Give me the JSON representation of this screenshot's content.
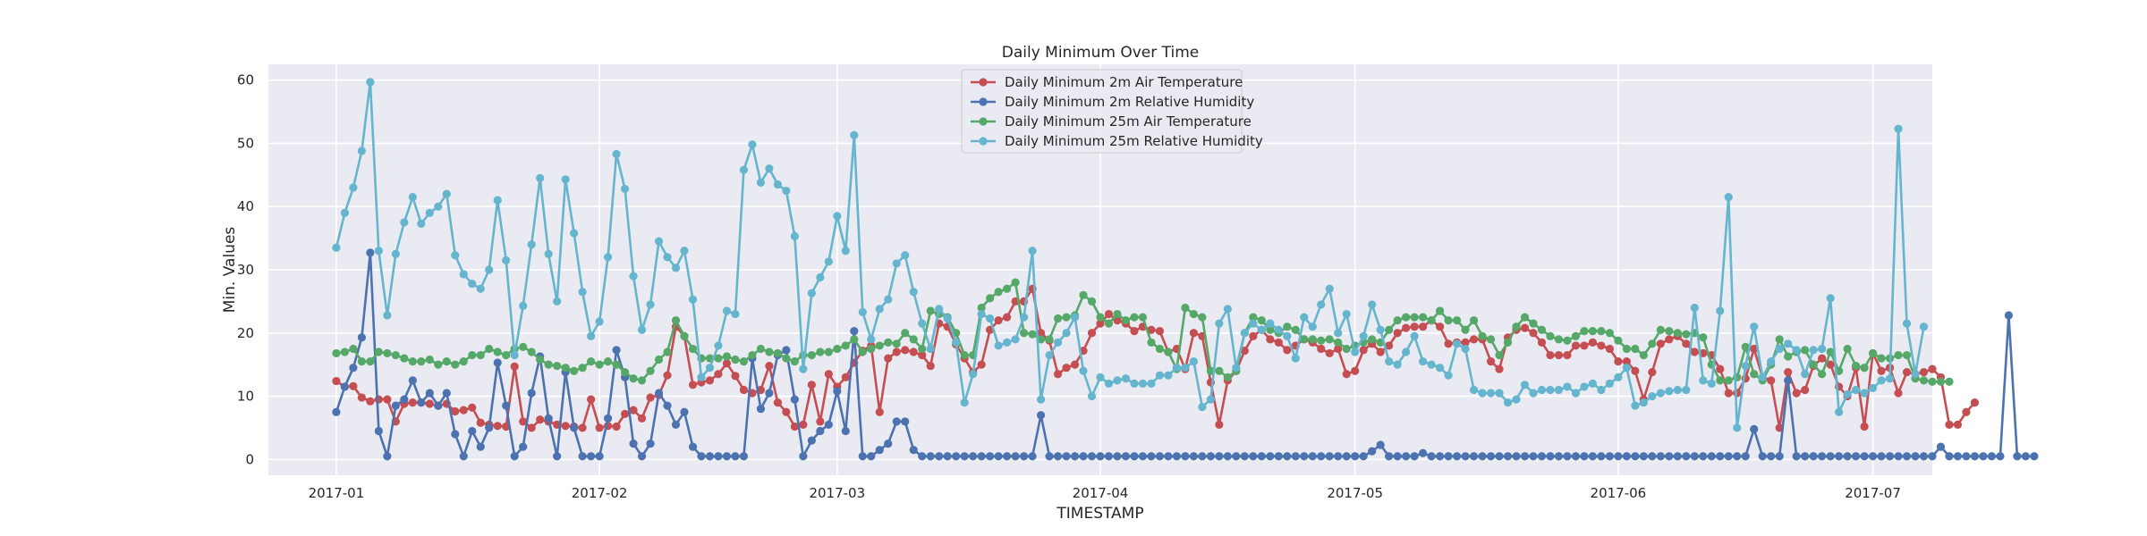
{
  "chart_data": {
    "type": "line",
    "title": "Daily Minimum Over Time",
    "xlabel": "TIMESTAMP",
    "ylabel": "Min. Values",
    "x_start": "2017-01-01",
    "x_end": "2017-06-30",
    "xlim": [
      "2016-12-24",
      "2017-07-08"
    ],
    "ylim": [
      -2.5,
      62.5
    ],
    "xticks": [
      {
        "date": "2017-01-01",
        "label": "2017-01"
      },
      {
        "date": "2017-02-01",
        "label": "2017-02"
      },
      {
        "date": "2017-03-01",
        "label": "2017-03"
      },
      {
        "date": "2017-04-01",
        "label": "2017-04"
      },
      {
        "date": "2017-05-01",
        "label": "2017-05"
      },
      {
        "date": "2017-06-01",
        "label": "2017-06"
      },
      {
        "date": "2017-07-01",
        "label": "2017-07"
      }
    ],
    "yticks": [
      0,
      10,
      20,
      30,
      40,
      50,
      60
    ],
    "grid": true,
    "legend_position": "top-center",
    "series": [
      {
        "name": "Daily Minimum 2m Air Temperature",
        "color": "#c44e52",
        "values": [
          12.4,
          11.5,
          11.6,
          9.8,
          9.2,
          9.5,
          9.5,
          6.0,
          8.8,
          9.0,
          9.0,
          8.8,
          8.5,
          8.8,
          7.6,
          7.8,
          8.2,
          5.8,
          5.5,
          5.3,
          5.2,
          14.7,
          6.0,
          5.0,
          6.3,
          6.0,
          5.5,
          5.3,
          5.2,
          5.0,
          9.5,
          5.0,
          5.3,
          5.2,
          7.2,
          7.8,
          6.5,
          9.8,
          10.2,
          13.3,
          21.0,
          19.5,
          11.8,
          12.2,
          12.5,
          13.5,
          15.2,
          13.2,
          11.0,
          10.5,
          11.0,
          14.8,
          9.0,
          7.5,
          5.2,
          5.5,
          11.8,
          6.0,
          13.5,
          11.5,
          13.0,
          15.3,
          17.2,
          18.0,
          7.5,
          16.0,
          17.0,
          17.3,
          17.0,
          16.5,
          14.8,
          21.5,
          21.0,
          18.2,
          16.0,
          13.8,
          15.0,
          20.5,
          22.0,
          22.5,
          25.0,
          25.0,
          27.0,
          20.0,
          18.8,
          13.5,
          14.5,
          15.0,
          17.2,
          20.0,
          21.5,
          23.0,
          22.0,
          21.5,
          20.3,
          21.0,
          20.5,
          20.3,
          17.0,
          17.5,
          14.3,
          20.0,
          19.5,
          12.2,
          5.5,
          12.5,
          14.0,
          17.2,
          19.5,
          20.5,
          19.0,
          18.5,
          17.3,
          18.0,
          19.0,
          18.5,
          17.5,
          16.8,
          17.5,
          13.5,
          14.0,
          17.3,
          18.3,
          17.0,
          18.0,
          20.0,
          20.8,
          21.0,
          21.0,
          22.0,
          21.0,
          18.3,
          18.5,
          18.5,
          19.0,
          19.0,
          15.5,
          14.3,
          19.3,
          20.5,
          20.8,
          20.0,
          18.5,
          16.5,
          16.5,
          16.5,
          18.0,
          18.0,
          18.5,
          18.0,
          17.5,
          15.5,
          15.5,
          14.0,
          9.5,
          13.8,
          18.3,
          19.0,
          19.5,
          18.3,
          17.0,
          16.8,
          16.5,
          14.3,
          10.5,
          10.5,
          12.8,
          17.5,
          13.0,
          12.5,
          5.0,
          13.8,
          10.5,
          11.0,
          14.8,
          16.0,
          15.0,
          11.5,
          10.0,
          14.5,
          5.2,
          16.8,
          14.0,
          14.5,
          10.5,
          13.8,
          13.5,
          13.8,
          14.3,
          13.0,
          5.5,
          5.5,
          7.5,
          9.0
        ]
      },
      {
        "name": "Daily Minimum 2m Relative Humidity",
        "color": "#4c72b0",
        "values": [
          7.5,
          11.5,
          14.5,
          19.3,
          32.7,
          4.5,
          0.5,
          8.5,
          9.5,
          12.5,
          9.0,
          10.5,
          8.5,
          10.5,
          4.0,
          0.5,
          4.5,
          2.0,
          5.0,
          15.3,
          8.5,
          0.5,
          2.0,
          10.5,
          16.3,
          6.5,
          0.5,
          13.8,
          5.0,
          0.5,
          0.5,
          0.5,
          6.5,
          17.3,
          13.0,
          2.5,
          0.5,
          2.5,
          10.5,
          8.5,
          5.5,
          7.5,
          2.0,
          0.5,
          0.5,
          0.5,
          0.5,
          0.5,
          0.5,
          16.0,
          8.0,
          10.5,
          16.5,
          17.3,
          9.5,
          0.5,
          3.0,
          4.5,
          5.5,
          10.8,
          4.5,
          20.3,
          0.5,
          0.5,
          1.5,
          2.5,
          6.0,
          6.0,
          1.5,
          0.5,
          0.5,
          0.5,
          0.5,
          0.5,
          0.5,
          0.5,
          0.5,
          0.5,
          0.5,
          0.5,
          0.5,
          0.5,
          0.5,
          7.0,
          0.5,
          0.5,
          0.5,
          0.5,
          0.5,
          0.5,
          0.5,
          0.5,
          0.5,
          0.5,
          0.5,
          0.5,
          0.5,
          0.5,
          0.5,
          0.5,
          0.5,
          0.5,
          0.5,
          0.5,
          0.5,
          0.5,
          0.5,
          0.5,
          0.5,
          0.5,
          0.5,
          0.5,
          0.5,
          0.5,
          0.5,
          0.5,
          0.5,
          0.5,
          0.5,
          0.5,
          0.5,
          0.5,
          1.3,
          2.3,
          0.5,
          0.5,
          0.5,
          0.5,
          1.0,
          0.5,
          0.5,
          0.5,
          0.5,
          0.5,
          0.5,
          0.5,
          0.5,
          0.5,
          0.5,
          0.5,
          0.5,
          0.5,
          0.5,
          0.5,
          0.5,
          0.5,
          0.5,
          0.5,
          0.5,
          0.5,
          0.5,
          0.5,
          0.5,
          0.5,
          0.5,
          0.5,
          0.5,
          0.5,
          0.5,
          0.5,
          0.5,
          0.5,
          0.5,
          0.5,
          0.5,
          0.5,
          0.5,
          4.8,
          0.5,
          0.5,
          0.5,
          12.5,
          0.5,
          0.5,
          0.5,
          0.5,
          0.5,
          0.5,
          0.5,
          0.5,
          0.5,
          0.5,
          0.5,
          0.5,
          0.5,
          0.5,
          0.5,
          0.5,
          0.5,
          2.0,
          0.5,
          0.5,
          0.5,
          0.5,
          0.5,
          0.5,
          0.5,
          22.8,
          0.5,
          0.5,
          0.5
        ]
      },
      {
        "name": "Daily Minimum 25m Air Temperature",
        "color": "#55a868",
        "values": [
          16.8,
          17.0,
          17.5,
          15.5,
          15.5,
          17.0,
          16.8,
          16.5,
          16.0,
          15.5,
          15.5,
          15.8,
          15.0,
          15.5,
          15.0,
          15.5,
          16.5,
          16.5,
          17.5,
          17.0,
          16.5,
          17.5,
          17.8,
          17.0,
          15.8,
          15.0,
          14.8,
          14.5,
          14.0,
          14.5,
          15.5,
          15.0,
          15.5,
          15.0,
          13.8,
          12.8,
          12.5,
          14.0,
          15.8,
          17.0,
          22.0,
          19.5,
          17.5,
          16.0,
          16.0,
          16.0,
          16.3,
          15.8,
          15.5,
          16.5,
          17.5,
          17.0,
          16.8,
          16.0,
          15.5,
          16.5,
          16.5,
          17.0,
          17.0,
          17.5,
          18.0,
          19.0,
          17.0,
          17.5,
          18.0,
          18.5,
          18.3,
          20.0,
          19.0,
          17.5,
          23.5,
          23.0,
          22.5,
          20.0,
          16.5,
          16.5,
          24.0,
          25.5,
          26.5,
          27.0,
          28.0,
          20.0,
          19.8,
          19.0,
          19.0,
          22.3,
          22.5,
          22.8,
          26.0,
          25.0,
          22.5,
          21.5,
          23.0,
          22.0,
          22.5,
          22.5,
          18.5,
          17.5,
          17.0,
          14.3,
          24.0,
          23.0,
          22.5,
          14.0,
          14.0,
          13.0,
          14.0,
          20.0,
          22.5,
          22.0,
          20.5,
          20.0,
          21.0,
          20.5,
          19.0,
          19.0,
          18.8,
          19.0,
          18.5,
          17.5,
          18.0,
          18.5,
          19.0,
          18.5,
          20.5,
          22.0,
          22.5,
          22.5,
          22.5,
          22.0,
          23.5,
          22.0,
          22.0,
          20.5,
          22.0,
          19.5,
          19.0,
          16.5,
          18.5,
          21.0,
          22.5,
          21.5,
          20.5,
          19.5,
          19.0,
          18.8,
          19.5,
          20.3,
          20.3,
          20.3,
          20.0,
          18.8,
          17.5,
          17.5,
          16.5,
          18.3,
          20.5,
          20.3,
          20.0,
          19.8,
          20.0,
          19.3,
          15.0,
          12.5,
          12.5,
          13.0,
          17.8,
          13.5,
          12.5,
          15.0,
          19.0,
          16.3,
          17.0,
          17.3,
          15.0,
          13.5,
          17.0,
          14.0,
          17.5,
          14.8,
          14.5,
          16.8,
          16.0,
          16.0,
          16.5,
          16.5,
          12.8,
          12.5,
          12.3,
          12.3,
          12.3
        ]
      },
      {
        "name": "Daily Minimum 25m Relative Humidity",
        "color": "#64b5cd",
        "values": [
          33.5,
          39.0,
          43.0,
          48.8,
          59.7,
          33.0,
          22.8,
          32.5,
          37.5,
          41.5,
          37.3,
          39.0,
          40.0,
          42.0,
          32.3,
          29.3,
          27.8,
          27.0,
          30.0,
          41.0,
          31.5,
          16.5,
          24.3,
          34.0,
          44.5,
          32.5,
          25.0,
          44.3,
          35.8,
          26.5,
          19.5,
          21.8,
          32.0,
          48.3,
          42.8,
          29.0,
          20.5,
          24.5,
          34.5,
          32.0,
          30.3,
          33.0,
          25.3,
          13.0,
          14.5,
          18.0,
          23.5,
          23.0,
          45.8,
          49.8,
          43.8,
          46.0,
          43.5,
          42.5,
          35.3,
          14.3,
          26.3,
          28.8,
          31.3,
          38.5,
          33.0,
          51.3,
          23.3,
          19.0,
          23.8,
          25.3,
          31.0,
          32.3,
          26.5,
          21.5,
          17.5,
          23.8,
          22.3,
          18.5,
          9.0,
          13.5,
          23.0,
          22.3,
          18.0,
          18.5,
          19.0,
          22.5,
          33.0,
          9.5,
          16.5,
          18.5,
          20.0,
          22.5,
          14.0,
          10.0,
          13.0,
          12.0,
          12.5,
          12.8,
          12.0,
          12.0,
          12.0,
          13.3,
          13.3,
          14.5,
          14.5,
          15.5,
          8.3,
          9.5,
          21.5,
          23.8,
          14.5,
          20.0,
          21.5,
          20.5,
          21.5,
          20.5,
          19.5,
          16.0,
          22.5,
          21.0,
          24.5,
          27.0,
          20.0,
          23.0,
          17.0,
          19.5,
          24.5,
          20.5,
          15.5,
          15.0,
          17.0,
          19.5,
          15.5,
          15.0,
          14.5,
          13.3,
          18.3,
          17.5,
          11.0,
          10.5,
          10.5,
          10.5,
          9.0,
          9.5,
          11.8,
          10.5,
          11.0,
          11.0,
          11.0,
          11.5,
          10.5,
          11.5,
          12.0,
          11.0,
          12.0,
          13.0,
          14.5,
          8.5,
          9.0,
          10.0,
          10.5,
          10.8,
          11.0,
          11.0,
          24.0,
          12.5,
          12.0,
          23.5,
          41.5,
          5.0,
          14.8,
          21.0,
          13.0,
          15.5,
          17.5,
          18.3,
          17.3,
          13.5,
          17.3,
          17.5,
          25.5,
          7.5,
          10.3,
          11.0,
          10.5,
          11.3,
          12.5,
          12.8,
          52.3,
          21.5,
          13.5,
          21.0
        ]
      }
    ]
  }
}
